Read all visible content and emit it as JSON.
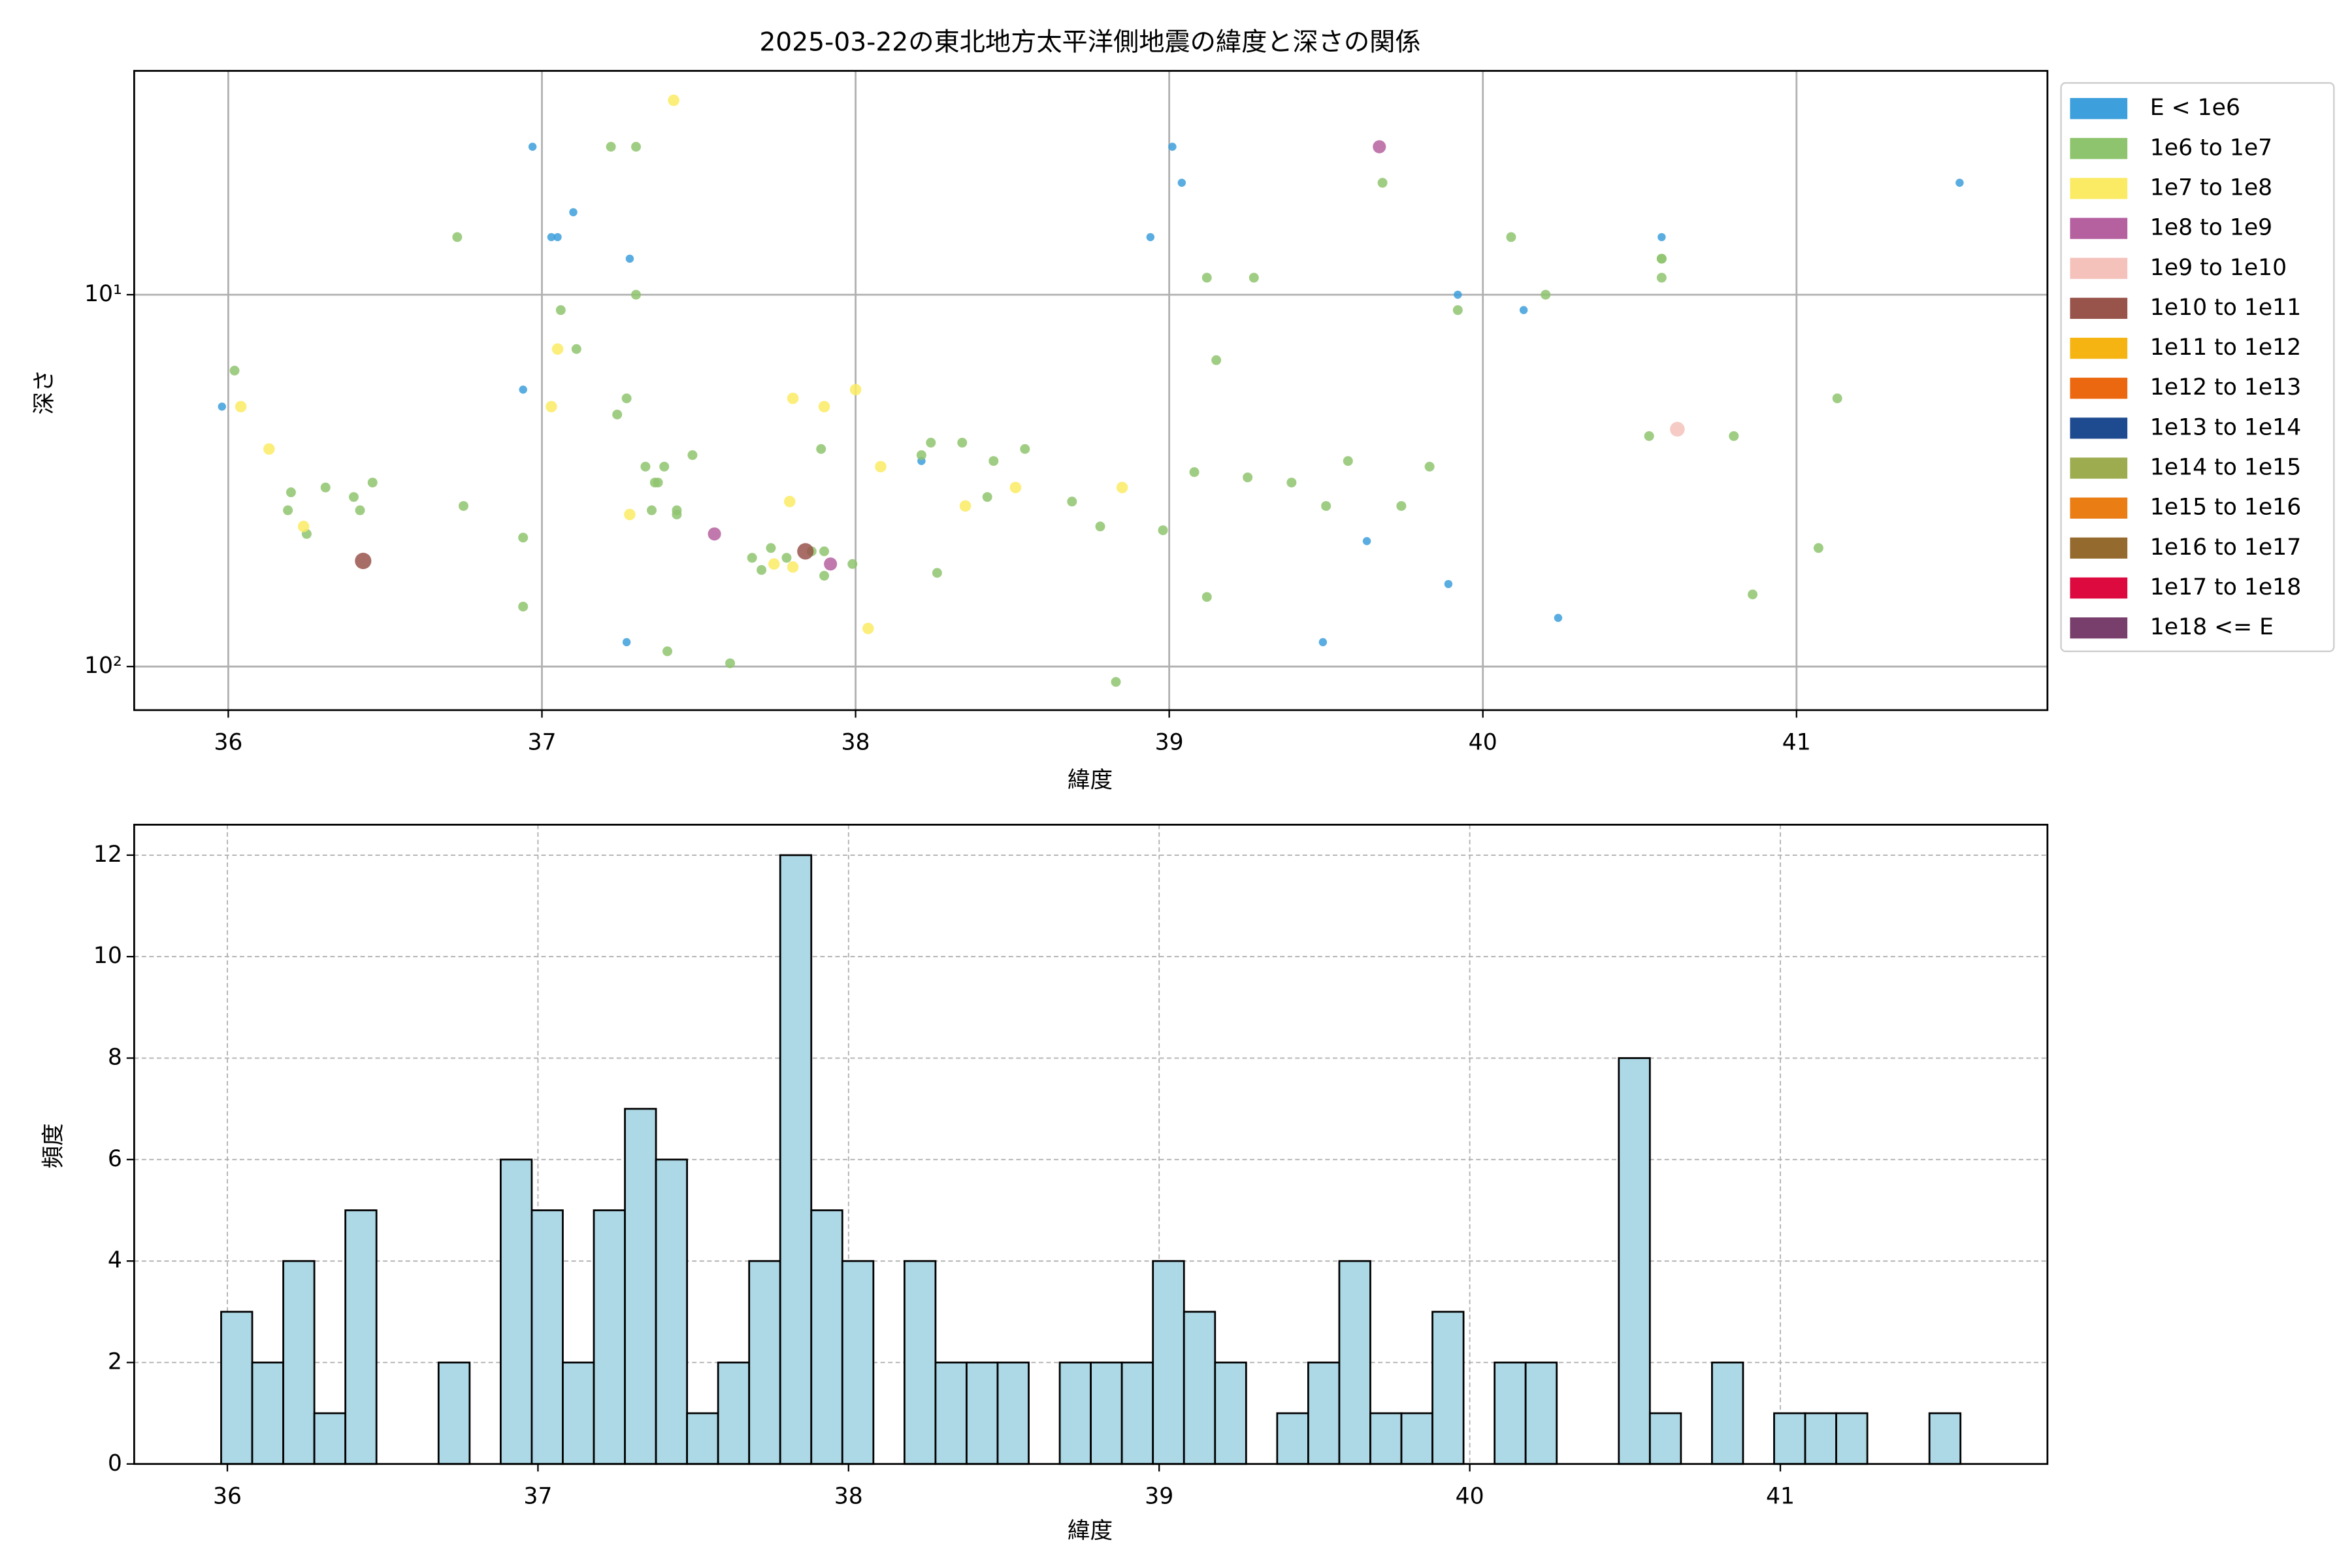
{
  "chart_data": [
    {
      "type": "scatter",
      "title": "2025-03-22の東北地方太平洋側地震の緯度と深さの関係",
      "xlabel": "緯度",
      "ylabel": "深さ",
      "xlim": [
        35.7,
        41.8
      ],
      "xticks": [
        36,
        37,
        38,
        39,
        40,
        41
      ],
      "ylim": [
        131,
        2.5
      ],
      "yticks": [
        {
          "value": 10,
          "label": "10¹"
        },
        {
          "value": 100,
          "label": "10²"
        }
      ],
      "log_y": true,
      "grid": true,
      "legend": "outside-right",
      "series": [
        {
          "name": "E < 1e6",
          "color": "#3d9fdb",
          "x": [
            35.98,
            36.97,
            36.94,
            37.1,
            37.03,
            37.05,
            37.28,
            37.27,
            38.21,
            39.01,
            39.04,
            38.94,
            39.92,
            40.13,
            39.63,
            39.89,
            39.49,
            40.24,
            40.57,
            41.52
          ],
          "y": [
            20,
            4,
            18,
            6,
            7,
            7,
            8,
            86,
            28,
            4,
            5,
            7,
            10,
            11,
            46,
            60,
            86,
            74,
            7,
            5
          ]
        },
        {
          "name": "1e6 to 1e7",
          "color": "#8fc46e",
          "x": [
            36.02,
            36.2,
            36.19,
            36.31,
            36.4,
            36.42,
            36.46,
            36.25,
            36.73,
            36.75,
            36.94,
            36.94,
            37.22,
            37.3,
            37.06,
            37.11,
            37.3,
            37.24,
            37.27,
            37.33,
            37.36,
            37.37,
            37.39,
            37.35,
            37.43,
            37.43,
            37.48,
            37.4,
            37.6,
            37.67,
            37.7,
            37.73,
            37.78,
            37.86,
            37.89,
            37.9,
            37.9,
            37.99,
            38.21,
            38.24,
            38.34,
            38.26,
            38.44,
            38.42,
            38.54,
            38.69,
            38.78,
            38.83,
            38.98,
            39.08,
            39.12,
            39.15,
            39.12,
            39.27,
            39.25,
            39.39,
            39.5,
            39.57,
            39.68,
            39.74,
            39.83,
            39.92,
            40.09,
            40.2,
            40.53,
            40.57,
            40.57,
            40.57,
            40.8,
            40.86,
            41.07,
            41.13
          ],
          "y": [
            16,
            34,
            38,
            33,
            35,
            38,
            32,
            44,
            7,
            37,
            45,
            69,
            4,
            4,
            11,
            14,
            10,
            21,
            19,
            29,
            32,
            32,
            29,
            38,
            38,
            39,
            27,
            91,
            98,
            51,
            55,
            48,
            51,
            49,
            26,
            49,
            57,
            53,
            27,
            25,
            25,
            56,
            28,
            35,
            26,
            36,
            42,
            110,
            43,
            30,
            9,
            15,
            65,
            9,
            31,
            32,
            37,
            28,
            5,
            37,
            29,
            11,
            7,
            10,
            24,
            8,
            8,
            9,
            24,
            64,
            48,
            19
          ]
        },
        {
          "name": "1e7 to 1e8",
          "color": "#fbeb64",
          "x": [
            37.42,
            36.04,
            36.13,
            37.03,
            37.05,
            37.8,
            37.9,
            38.0,
            38.08,
            37.28,
            37.79,
            38.35,
            38.51,
            38.85,
            38.04,
            36.24,
            37.74,
            37.8
          ],
          "y": [
            3,
            20,
            26,
            20,
            14,
            19,
            20,
            18,
            29,
            39,
            36,
            37,
            33,
            33,
            79,
            42,
            53,
            54
          ]
        },
        {
          "name": "1e8 to 1e9",
          "color": "#b5609f",
          "x": [
            39.67,
            37.55,
            37.92
          ],
          "y": [
            4,
            44,
            53
          ]
        },
        {
          "name": "1e9 to 1e10",
          "color": "#f4c2bb",
          "x": [
            40.62
          ],
          "y": [
            23
          ]
        },
        {
          "name": "1e10 to 1e11",
          "color": "#98534b",
          "x": [
            36.43,
            37.84
          ],
          "y": [
            52,
            49
          ]
        },
        {
          "name": "1e11 to 1e12",
          "color": "#f6b413",
          "x": [],
          "y": []
        },
        {
          "name": "1e12 to 1e13",
          "color": "#ec6810",
          "x": [],
          "y": []
        },
        {
          "name": "1e13 to 1e14",
          "color": "#1e4b8f",
          "x": [],
          "y": []
        },
        {
          "name": "1e14 to 1e15",
          "color": "#9dac4f",
          "x": [],
          "y": []
        },
        {
          "name": "1e15 to 1e16",
          "color": "#ea7d14",
          "x": [],
          "y": []
        },
        {
          "name": "1e16 to 1e17",
          "color": "#946a2e",
          "x": [],
          "y": []
        },
        {
          "name": "1e17 to 1e18",
          "color": "#dc0a3f",
          "x": [],
          "y": []
        },
        {
          "name": "1e18 <= E",
          "color": "#793f6c",
          "x": [],
          "y": []
        }
      ]
    },
    {
      "type": "histogram",
      "xlabel": "緯度",
      "ylabel": "頻度",
      "xlim": [
        35.7,
        41.86
      ],
      "xticks": [
        36,
        37,
        38,
        39,
        40,
        41
      ],
      "ylim": [
        0,
        12.6
      ],
      "yticks": [
        0,
        2,
        4,
        6,
        8,
        10,
        12
      ],
      "grid": true,
      "color": "#add8e6",
      "edgecolor": "#000000",
      "bins": [
        35.98,
        36.08,
        36.18,
        36.28,
        36.38,
        36.48,
        36.58,
        36.68,
        36.78,
        36.88,
        36.98,
        37.08,
        37.18,
        37.28,
        37.38,
        37.48,
        37.58,
        37.68,
        37.78,
        37.88,
        37.98,
        38.08,
        38.18,
        38.28,
        38.38,
        38.48,
        38.58,
        38.68,
        38.78,
        38.88,
        38.98,
        39.08,
        39.18,
        39.28,
        39.38,
        39.48,
        39.58,
        39.68,
        39.78,
        39.88,
        39.98,
        40.08,
        40.18,
        40.28,
        40.38,
        40.48,
        40.58,
        40.68,
        40.78,
        40.88,
        40.98,
        41.08,
        41.18,
        41.28,
        41.38,
        41.48,
        41.58
      ],
      "counts": [
        3,
        2,
        4,
        1,
        5,
        0,
        0,
        2,
        0,
        6,
        5,
        2,
        5,
        7,
        6,
        1,
        2,
        4,
        12,
        5,
        4,
        0,
        4,
        2,
        2,
        2,
        0,
        2,
        2,
        2,
        4,
        3,
        2,
        0,
        1,
        2,
        4,
        1,
        1,
        3,
        0,
        2,
        2,
        0,
        0,
        8,
        1,
        0,
        2,
        0,
        1,
        1,
        1,
        0,
        0,
        1
      ]
    }
  ]
}
